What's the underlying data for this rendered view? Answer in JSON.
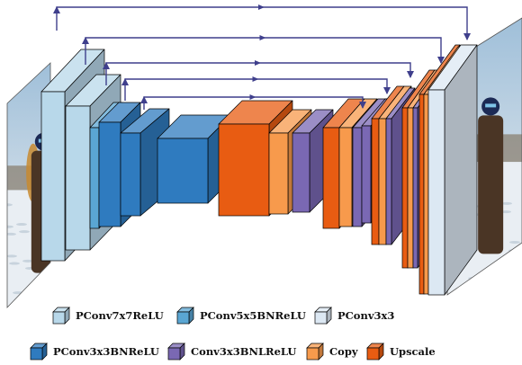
{
  "colors": {
    "pconv7": "#b8d8ea",
    "pconv5": "#5aa6d3",
    "pconv3": "#dce8f3",
    "pconv3bn": "#2f7bbf",
    "conv3bnl": "#7a68b3",
    "copy": "#f79a4c",
    "upscale": "#e85c12",
    "skip": "#3f3f8c"
  },
  "images": {
    "input": "winter-photo-masked",
    "output": "winter-photo-inpainted"
  },
  "legend": {
    "row1": [
      {
        "key": "pconv7",
        "label": "PConv7x7ReLU"
      },
      {
        "key": "pconv5",
        "label": "PConv5x5BNReLU"
      },
      {
        "key": "pconv3",
        "label": "PConv3x3"
      }
    ],
    "row2": [
      {
        "key": "pconv3bn",
        "label": "PConv3x3BNReLU"
      },
      {
        "key": "conv3bnl",
        "label": "Conv3x3BNLReLU"
      },
      {
        "key": "copy",
        "label": "Copy"
      },
      {
        "key": "upscale",
        "label": "Upscale"
      }
    ]
  }
}
